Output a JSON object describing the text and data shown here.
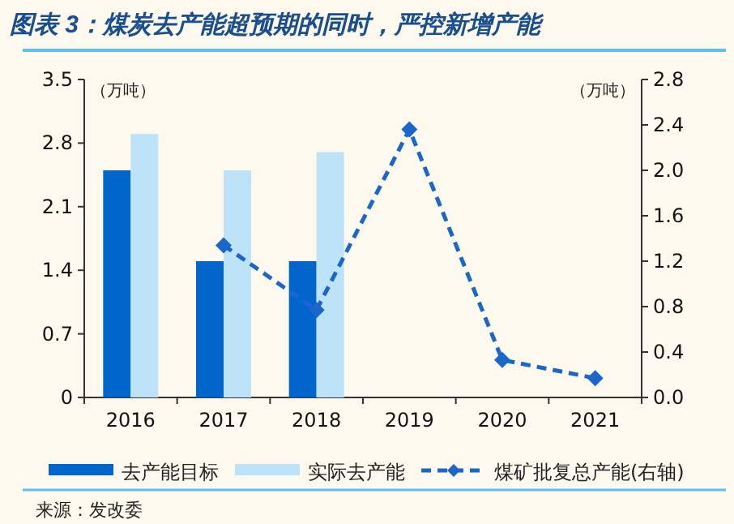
{
  "chart_data": {
    "type": "bar",
    "title": "图表 3：煤炭去产能超预期的同时，严控新增产能",
    "ylabel": "（万吨）",
    "y2label": "（万吨）",
    "categories": [
      "2016",
      "2017",
      "2018",
      "2019",
      "2020",
      "2021"
    ],
    "series": [
      {
        "name": "去产能目标",
        "color": "#0066cc",
        "values": [
          2.5,
          1.5,
          1.5,
          null,
          null,
          null
        ]
      },
      {
        "name": "实际去产能",
        "color": "#bde3f8",
        "values": [
          2.9,
          2.5,
          2.7,
          null,
          null,
          null
        ]
      },
      {
        "name": "煤矿批复总产能(右轴)",
        "color": "#1a66cc",
        "type": "line",
        "axis": "y2",
        "marker": "diamond",
        "line_style": "dashed",
        "values": [
          null,
          1.34,
          0.77,
          2.36,
          0.33,
          0.17
        ]
      }
    ],
    "ylim": [
      0,
      3.5
    ],
    "yticks": [
      0,
      0.7,
      1.4,
      2.1,
      2.8,
      3.5
    ],
    "y2lim": [
      0,
      2.8
    ],
    "y2ticks": [
      {
        "value": 0,
        "label": "0.0"
      },
      0.4,
      0.8,
      1.2,
      1.6,
      {
        "value": 2,
        "label": "2.0"
      },
      2.4,
      2.8
    ],
    "legend": "bottom",
    "grid": false,
    "annotations": [
      "来源：发改委"
    ]
  }
}
